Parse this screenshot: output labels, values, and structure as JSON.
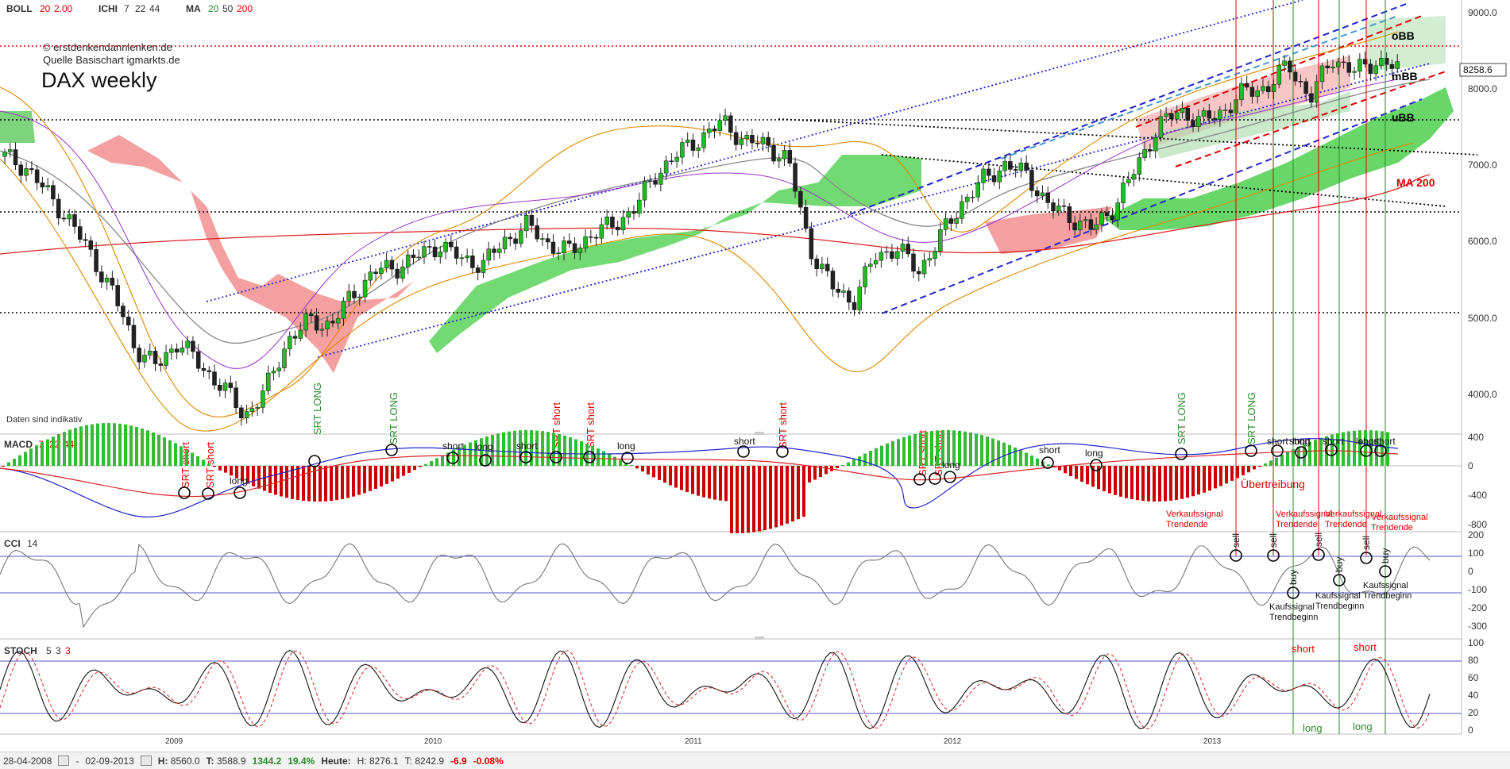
{
  "header": {
    "boll": {
      "label": "BOLL",
      "p1": "20",
      "p2": "2.00"
    },
    "ichi": {
      "label": "ICHI",
      "p1": "7",
      "p2": "22",
      "p3": "44"
    },
    "ma": {
      "label": "MA",
      "p1": "20",
      "p2": "50",
      "p3": "200"
    }
  },
  "watermark": {
    "line1": "© erstdenkendannlenken.de",
    "line2": "Quelle Basischart igmarkts.de",
    "title": "DAX weekly",
    "disclaimer": "Daten sind indikativ"
  },
  "price_annotations": {
    "obb": "oBB",
    "mbb": "mBB",
    "ubb": "uBB",
    "ma200": "MA 200",
    "last_price": "8258.6"
  },
  "panels": {
    "macd": {
      "label": "MACD",
      "p1": "7",
      "p2": "22",
      "p3": "44"
    },
    "cci": {
      "label": "CCI",
      "p1": "14"
    },
    "stoch": {
      "label": "STOCH",
      "p1": "5",
      "p2": "3",
      "p3": "3"
    }
  },
  "x_ticks": [
    "2009",
    "2010",
    "2011",
    "2012",
    "2013"
  ],
  "signals": {
    "srt_long": "SRT LONG",
    "srt_short": "SRT short",
    "short": "short",
    "long": "long",
    "ubertreibung": "Übertreibung",
    "verkauf": "Verkaufssignal Trendende",
    "verkauf_a": "Verkaufssignal",
    "verkauf_b": "Trendende",
    "kauf_a": "Kaufssignal",
    "kauf_b": "Trendbeginn",
    "sell": "sell",
    "buy": "buy"
  },
  "footer": {
    "from": "28-04-2008",
    "sep": "-",
    "to": "02-09-2013",
    "high_lbl": "H:",
    "high": "8560.0",
    "low_lbl": "T:",
    "low": "3588.9",
    "change": "1344.2",
    "change_pct": "19.4%",
    "today_lbl": "Heute:",
    "today_high": "H: 8276.1",
    "today_low": "T: 8242.9",
    "today_change": "-6.9",
    "today_pct": "-0.08%"
  },
  "chart_data": [
    {
      "type": "line",
      "title": "DAX weekly",
      "y_ticks": [
        "9000.0",
        "8000.0",
        "7000.0",
        "6000.0",
        "5000.0",
        "4000.0"
      ],
      "ylim": [
        3500,
        9100
      ],
      "x_ticks": [
        "2009",
        "2010",
        "2011",
        "2012",
        "2013"
      ],
      "series": [
        {
          "values": [
            7100,
            6950,
            6600,
            6250,
            5800,
            5300,
            4600,
            4350,
            4700,
            4350,
            4100,
            3700,
            4050,
            4700,
            4950,
            4900,
            5300,
            5600,
            5650,
            5800,
            5950,
            5750,
            5700,
            6000,
            6200,
            5950,
            5850,
            6100,
            6200,
            6450,
            6900,
            7150,
            7350,
            7550,
            7300,
            7250,
            7050,
            5900,
            5400,
            5200,
            5800,
            5900,
            5600,
            6050,
            6500,
            6800,
            7000,
            6850,
            6450,
            6300,
            6150,
            6450,
            6950,
            7500,
            7700,
            7550,
            7700,
            7950,
            8000,
            8300,
            7850,
            8400,
            8200,
            8350,
            8250
          ]
        }
      ],
      "horizontal_levels": [
        8550,
        7600,
        6400,
        5100
      ]
    },
    {
      "type": "bar",
      "title": "MACD",
      "y_ticks": [
        "400",
        "0",
        "-400",
        "-800"
      ],
      "ylim": [
        -800,
        400
      ]
    },
    {
      "type": "line",
      "title": "CCI",
      "y_ticks": [
        "200",
        "100",
        "0",
        "-100",
        "-200",
        "-300"
      ],
      "ylim": [
        -300,
        200
      ]
    },
    {
      "type": "line",
      "title": "STOCH",
      "y_ticks": [
        "100",
        "80",
        "60",
        "40",
        "20",
        "0"
      ],
      "ylim": [
        0,
        100
      ]
    }
  ]
}
